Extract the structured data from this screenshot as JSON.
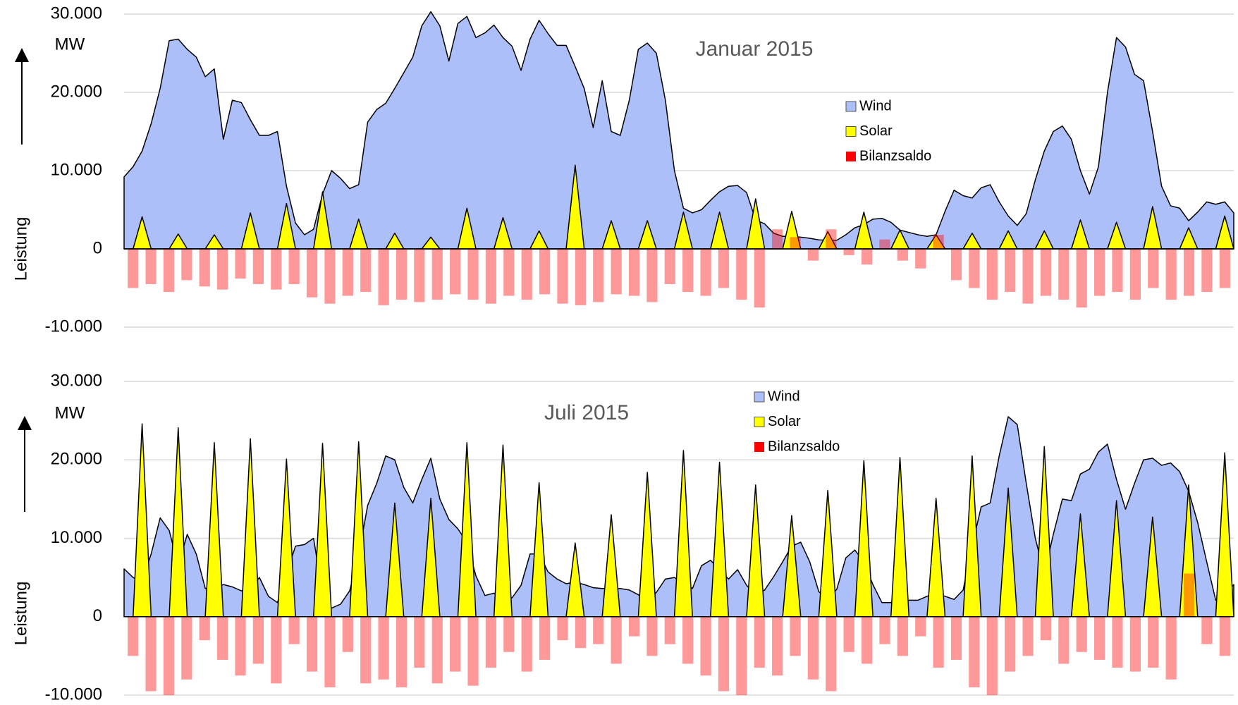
{
  "chart_data": [
    {
      "type": "area",
      "title": "Januar 2015",
      "unit_label": "MW",
      "y_label": "Leistung",
      "ylim": [
        -10000,
        30000
      ],
      "yticks": [
        {
          "value": 30000,
          "label": "30.000"
        },
        {
          "value": 20000,
          "label": "20.000"
        },
        {
          "value": 10000,
          "label": "10.000"
        },
        0,
        {
          "value": -10000,
          "label": "-10.000"
        }
      ],
      "grid": true,
      "series": [
        {
          "name": "Wind",
          "color": "#adbff9",
          "values": [
            9200,
            10500,
            12500,
            16000,
            20500,
            26600,
            26800,
            25500,
            24500,
            22000,
            23000,
            14000,
            19000,
            18700,
            16500,
            14500,
            14500,
            15000,
            8000,
            3300,
            1800,
            2500,
            7000,
            10000,
            9000,
            7700,
            8200,
            16200,
            17800,
            18600,
            20500,
            22500,
            24500,
            28500,
            30300,
            28500,
            24000,
            28800,
            29700,
            27000,
            27600,
            28600,
            27000,
            25900,
            22800,
            26800,
            29200,
            27500,
            26000,
            26000,
            23300,
            20500,
            15500,
            21500,
            15000,
            14500,
            19000,
            25500,
            26300,
            25000,
            19000,
            10000,
            5200,
            4600,
            5000,
            6200,
            7300,
            8000,
            8100,
            7200,
            3700,
            3200,
            2000,
            1600,
            1600,
            1500,
            1350,
            1150,
            1100,
            1100,
            1800,
            2700,
            3100,
            3800,
            3900,
            3400,
            2400,
            2100,
            1800,
            1600,
            1800,
            4800,
            7500,
            6800,
            6500,
            7800,
            8200,
            6000,
            4200,
            3000,
            4500,
            8800,
            12500,
            15000,
            15700,
            14000,
            10000,
            7000,
            10500,
            20000,
            27000,
            25800,
            22300,
            21500,
            15000,
            8000,
            5500,
            5200,
            3600,
            4700,
            6000,
            5700,
            6000,
            4600
          ]
        },
        {
          "name": "Solar",
          "color": "#ffff00",
          "values": [
            0,
            0,
            4100,
            0,
            0,
            0,
            1900,
            0,
            0,
            0,
            1800,
            0,
            0,
            0,
            4600,
            0,
            0,
            0,
            5800,
            0,
            0,
            0,
            7300,
            0,
            0,
            0,
            3800,
            0,
            0,
            0,
            2000,
            0,
            0,
            0,
            1500,
            0,
            0,
            0,
            5200,
            0,
            0,
            0,
            4000,
            0,
            0,
            0,
            2300,
            0,
            0,
            0,
            10700,
            0,
            0,
            0,
            3600,
            0,
            0,
            0,
            3600,
            0,
            0,
            0,
            4700,
            0,
            0,
            0,
            4700,
            0,
            0,
            0,
            6400,
            0,
            0,
            0,
            4800,
            0,
            0,
            0,
            2200,
            0,
            0,
            0,
            4700,
            0,
            0,
            0,
            2400,
            0,
            0,
            0,
            1800,
            0,
            0,
            0,
            2000,
            0,
            0,
            0,
            2300,
            0,
            0,
            0,
            2300,
            0,
            0,
            0,
            3700,
            0,
            0,
            0,
            3400,
            0,
            0,
            0,
            5400,
            0,
            0,
            0,
            2700,
            0,
            0,
            0,
            4200,
            0
          ]
        },
        {
          "name": "Bilanzsaldo",
          "color": "#ff0000",
          "type": "bar",
          "values": [
            -5000,
            -4500,
            -5500,
            -4000,
            -4800,
            -5200,
            -3800,
            -4500,
            -5200,
            -4500,
            -6200,
            -7000,
            -6000,
            -5500,
            -7200,
            -6500,
            -6800,
            -6500,
            -5800,
            -6500,
            -7000,
            -6000,
            -6500,
            -5800,
            -7000,
            -7200,
            -6800,
            -5800,
            -6000,
            -6800,
            -4500,
            -5500,
            -6000,
            -5000,
            -6500,
            -7500,
            2500,
            1500,
            -1500,
            2500,
            -800,
            -2000,
            1200,
            -1500,
            -2500,
            1800,
            -4000,
            -5000,
            -6500,
            -5500,
            -7000,
            -6000,
            -6500,
            -7500,
            -6000,
            -5500,
            -6500,
            -5000,
            -6500,
            -6000,
            -5500,
            -5000
          ]
        }
      ]
    },
    {
      "type": "area",
      "title": "Juli 2015",
      "unit_label": "MW",
      "y_label": "Leistung",
      "ylim": [
        -10000,
        30000
      ],
      "yticks": [
        {
          "value": 30000,
          "label": "30.000"
        },
        {
          "value": 20000,
          "label": "20.000"
        },
        {
          "value": 10000,
          "label": "10.000"
        },
        0,
        {
          "value": -10000,
          "label": "-10.000"
        }
      ],
      "grid": true,
      "series": [
        {
          "name": "Wind",
          "color": "#adbff9",
          "values": [
            6100,
            5000,
            4500,
            8000,
            12600,
            11000,
            6500,
            10500,
            8000,
            3600,
            3600,
            4100,
            3800,
            3300,
            3600,
            5000,
            2600,
            1800,
            5500,
            9000,
            9200,
            10000,
            3000,
            1100,
            1600,
            3300,
            7800,
            14200,
            17000,
            20500,
            20000,
            16500,
            14500,
            17500,
            20200,
            15000,
            12400,
            11200,
            9500,
            5200,
            2700,
            3000,
            2500,
            2400,
            4000,
            8000,
            8000,
            5700,
            4800,
            4200,
            4400,
            4100,
            3700,
            3600,
            3600,
            3600,
            3400,
            2800,
            2000,
            3100,
            4800,
            5000,
            4200,
            3600,
            6500,
            7200,
            6000,
            4800,
            6000,
            4000,
            2800,
            3400,
            5100,
            7000,
            9000,
            9500,
            7000,
            3200,
            2200,
            3500,
            7500,
            8500,
            7000,
            4100,
            1800,
            1800,
            2100,
            2100,
            2100,
            2600,
            3000,
            2600,
            2200,
            3400,
            9000,
            14000,
            14500,
            20500,
            25500,
            24500,
            17000,
            10000,
            5500,
            10500,
            15000,
            14800,
            18200,
            18800,
            21000,
            22000,
            17500,
            13700,
            17000,
            20000,
            20200,
            19300,
            19600,
            18500,
            16000,
            12000,
            7000,
            2100,
            2800,
            4100
          ]
        },
        {
          "name": "Solar",
          "color": "#ffff00",
          "values": [
            0,
            0,
            24600,
            0,
            0,
            0,
            24100,
            0,
            0,
            0,
            22200,
            0,
            0,
            0,
            22700,
            0,
            0,
            0,
            20100,
            0,
            0,
            0,
            22100,
            0,
            0,
            0,
            22300,
            0,
            0,
            0,
            14500,
            0,
            0,
            0,
            15100,
            0,
            0,
            0,
            22200,
            0,
            0,
            0,
            21900,
            0,
            0,
            0,
            17100,
            0,
            0,
            0,
            9400,
            0,
            0,
            0,
            13000,
            0,
            0,
            0,
            18400,
            0,
            0,
            0,
            21200,
            0,
            0,
            0,
            19700,
            0,
            0,
            0,
            16800,
            0,
            0,
            0,
            12900,
            0,
            0,
            0,
            16100,
            0,
            0,
            0,
            19900,
            0,
            0,
            0,
            20300,
            0,
            0,
            0,
            15100,
            0,
            0,
            0,
            20500,
            0,
            0,
            0,
            16400,
            0,
            0,
            0,
            21700,
            0,
            0,
            0,
            13100,
            0,
            0,
            0,
            14800,
            0,
            0,
            0,
            12700,
            0,
            0,
            0,
            16800,
            0,
            0,
            0,
            20900,
            0
          ]
        },
        {
          "name": "Bilanzsaldo",
          "color": "#ff0000",
          "type": "bar",
          "values": [
            -5000,
            -9500,
            -10000,
            -8000,
            -3000,
            -5500,
            -7500,
            -6000,
            -8500,
            -3500,
            -7000,
            -9000,
            -4500,
            -8500,
            -8000,
            -9000,
            -6500,
            -8500,
            -7000,
            -8800,
            -6500,
            -4500,
            -7000,
            -5500,
            -3000,
            -4000,
            -3500,
            -6000,
            -2500,
            -5000,
            -3500,
            -6000,
            -7500,
            -9500,
            -10000,
            -6500,
            -7500,
            -5000,
            -8000,
            -9500,
            -4500,
            -6000,
            -3500,
            -5000,
            -2500,
            -6500,
            -5500,
            -9000,
            -10000,
            -7000,
            -5000,
            -3000,
            -6000,
            -4500,
            -5500,
            -6500,
            -7000,
            -6500,
            -8000,
            5500,
            -3500,
            -5000
          ]
        }
      ]
    }
  ]
}
